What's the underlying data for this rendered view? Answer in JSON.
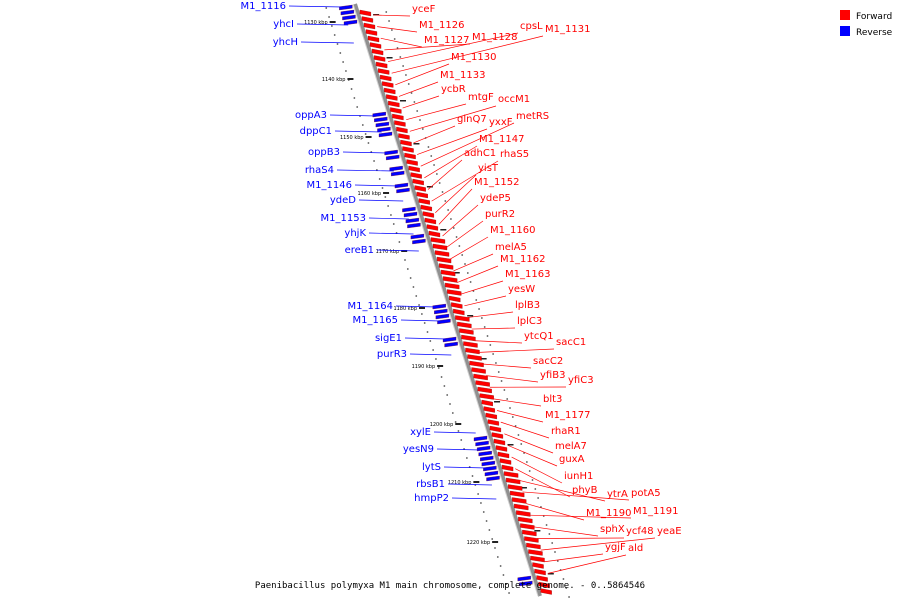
{
  "caption": "Paenibacillus polymyxa M1 main chromosome, complete genome. - 0..5864546",
  "legend": [
    {
      "label": "Forward",
      "color": "#ff0000"
    },
    {
      "label": "Reverse",
      "color": "#0000ff"
    }
  ],
  "colors": {
    "forward": "#ff0000",
    "reverse": "#0000ff",
    "axis": "#909090"
  },
  "ticks": [
    "1130 kbp",
    "1140 kbp",
    "1150 kbp",
    "1160 kbp",
    "1170 kbp",
    "1180 kbp",
    "1190 kbp",
    "1200 kbp",
    "1210 kbp",
    "1220 kbp"
  ],
  "genes_forward": [
    "yceF",
    "M1_1126",
    "M1_1127",
    "M1_1128",
    "cpsL",
    "M1_1131",
    "M1_1130",
    "M1_1133",
    "ycbR",
    "mtgF",
    "occM1",
    "glnQ7",
    "yxxF",
    "metRS",
    "M1_1147",
    "adhC1",
    "rhaS5",
    "yisT",
    "M1_1152",
    "ydeP5",
    "purR2",
    "M1_1160",
    "melA5",
    "M1_1162",
    "M1_1163",
    "yesW",
    "lplB3",
    "lplC3",
    "ytcQ1",
    "sacC1",
    "sacC2",
    "yfiB3",
    "yfiC3",
    "blt3",
    "M1_1177",
    "rhaR1",
    "melA7",
    "guxA",
    "iunH1",
    "phyB",
    "ytrA",
    "potA5",
    "M1_1190",
    "M1_1191",
    "sphX",
    "ycf48",
    "yeaE",
    "ygjF",
    "ald"
  ],
  "genes_reverse": [
    "M1_1116",
    "yhcI",
    "yhcH",
    "oppA3",
    "dppC1",
    "oppB3",
    "rhaS4",
    "M1_1146",
    "ydeD",
    "M1_1153",
    "yhjK",
    "ereB1",
    "M1_1164",
    "M1_1165",
    "sigE1",
    "purR3",
    "xylE",
    "yesN9",
    "lytS",
    "rbsB1",
    "hmpP2"
  ]
}
